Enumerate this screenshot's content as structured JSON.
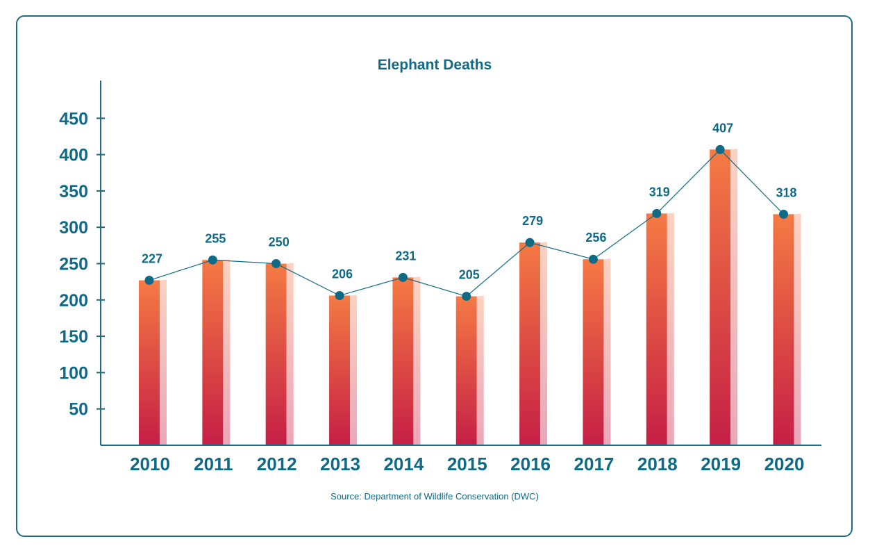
{
  "chart_data": {
    "type": "bar",
    "title": "Elephant Deaths",
    "categories": [
      "2010",
      "2011",
      "2012",
      "2013",
      "2014",
      "2015",
      "2016",
      "2017",
      "2018",
      "2019",
      "2020"
    ],
    "series": [
      {
        "values": [
          227,
          255,
          250,
          206,
          231,
          205,
          279,
          256,
          319,
          407,
          318
        ]
      }
    ],
    "overlay_line": true,
    "yticks": [
      50,
      100,
      150,
      200,
      250,
      300,
      350,
      400,
      450
    ],
    "ylim": [
      0,
      500
    ],
    "xlabel": "",
    "ylabel": "",
    "grid": false,
    "legend": "none",
    "source": "Source: Department of Wildlife Conservation (DWC)",
    "colors": {
      "bar_top": "#f57a44",
      "bar_bottom": "#c51f45",
      "bar_side_top": "#fcd2c0",
      "bar_side_bottom": "#eba6b8",
      "line": "#0f6a86",
      "text": "#0f6a86",
      "axis": "#1d6a84"
    }
  }
}
